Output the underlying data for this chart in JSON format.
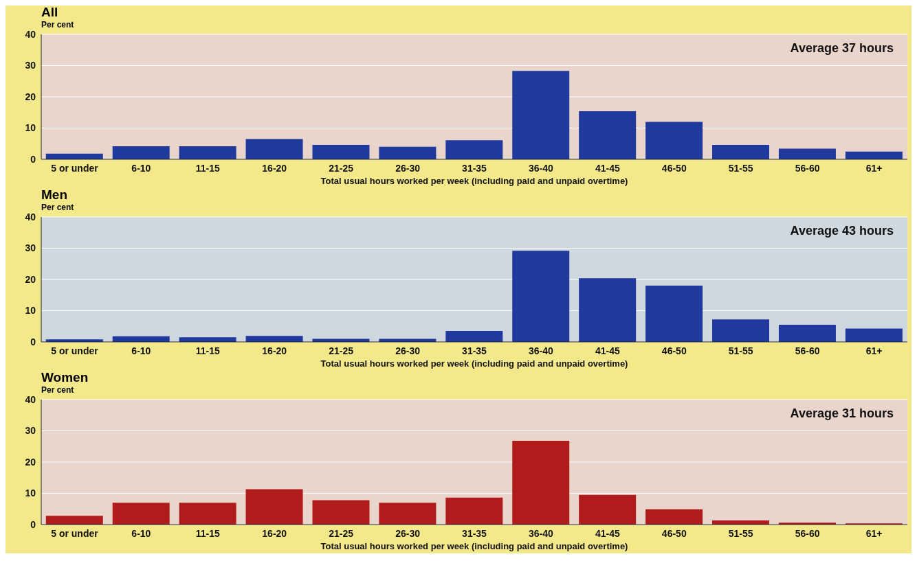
{
  "chart_data": [
    {
      "type": "bar",
      "title": "All",
      "ylabel": "Per cent",
      "xlabel": "Total usual hours worked per week (including paid and unpaid overtime)",
      "categories": [
        "5 or under",
        "6-10",
        "11-15",
        "16-20",
        "21-25",
        "26-30",
        "31-35",
        "36-40",
        "41-45",
        "46-50",
        "51-55",
        "56-60",
        "61+"
      ],
      "values": [
        1.8,
        4.2,
        4.2,
        6.5,
        4.6,
        4.0,
        6.1,
        28.3,
        15.4,
        12.0,
        4.6,
        3.4,
        2.5
      ],
      "color": "#1f3a9c",
      "ylim": [
        0,
        40
      ],
      "yticks": [
        0,
        10,
        20,
        30,
        40
      ],
      "grid": "y",
      "annotations": [
        "Average 37 hours"
      ]
    },
    {
      "type": "bar",
      "title": "Men",
      "ylabel": "Per cent",
      "xlabel": "Total usual hours worked per week (including paid and unpaid overtime)",
      "categories": [
        "5 or under",
        "6-10",
        "11-15",
        "16-20",
        "21-25",
        "26-30",
        "31-35",
        "36-40",
        "41-45",
        "46-50",
        "51-55",
        "56-60",
        "61+"
      ],
      "values": [
        0.8,
        1.8,
        1.5,
        1.9,
        1.0,
        1.0,
        3.5,
        29.2,
        20.4,
        18.0,
        7.2,
        5.5,
        4.3
      ],
      "color": "#1f3a9c",
      "ylim": [
        0,
        40
      ],
      "yticks": [
        0,
        10,
        20,
        30,
        40
      ],
      "grid": "y",
      "annotations": [
        "Average 43 hours"
      ]
    },
    {
      "type": "bar",
      "title": "Women",
      "ylabel": "Per cent",
      "xlabel": "Total usual hours worked per week (including paid and unpaid overtime)",
      "categories": [
        "5 or under",
        "6-10",
        "11-15",
        "16-20",
        "21-25",
        "26-30",
        "31-35",
        "36-40",
        "41-45",
        "46-50",
        "51-55",
        "56-60",
        "61+"
      ],
      "values": [
        2.8,
        7.0,
        7.0,
        11.3,
        7.8,
        7.0,
        8.6,
        26.8,
        9.5,
        4.9,
        1.3,
        0.6,
        0.4
      ],
      "color": "#b01c1c",
      "ylim": [
        0,
        40
      ],
      "yticks": [
        0,
        10,
        20,
        30,
        40
      ],
      "grid": "y",
      "annotations": [
        "Average 31 hours"
      ]
    }
  ]
}
